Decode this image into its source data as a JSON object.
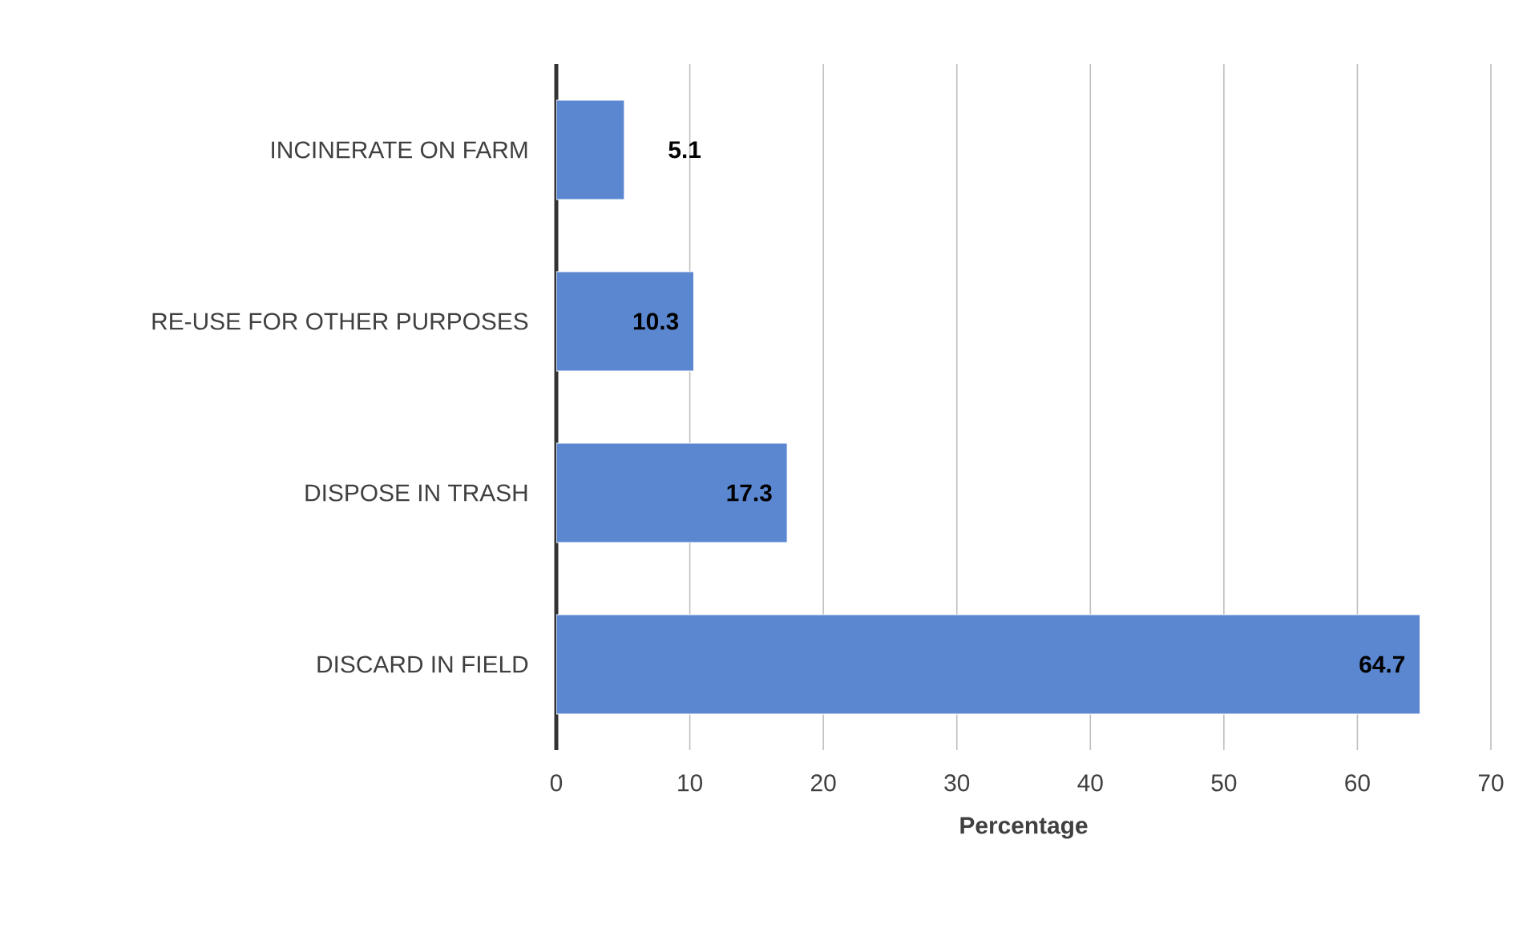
{
  "chart_data": {
    "type": "bar",
    "orientation": "horizontal",
    "categories": [
      "INCINERATE ON FARM",
      "RE-USE FOR OTHER PURPOSES",
      "DISPOSE IN TRASH",
      "DISCARD IN FIELD"
    ],
    "values": [
      5.1,
      10.3,
      17.3,
      64.7
    ],
    "color": "#5b87d0",
    "xlim": [
      0,
      70
    ],
    "xticks": [
      0,
      10,
      20,
      30,
      40,
      50,
      60,
      70
    ],
    "xlabel": "Percentage",
    "grid": "x",
    "data_labels": true
  }
}
